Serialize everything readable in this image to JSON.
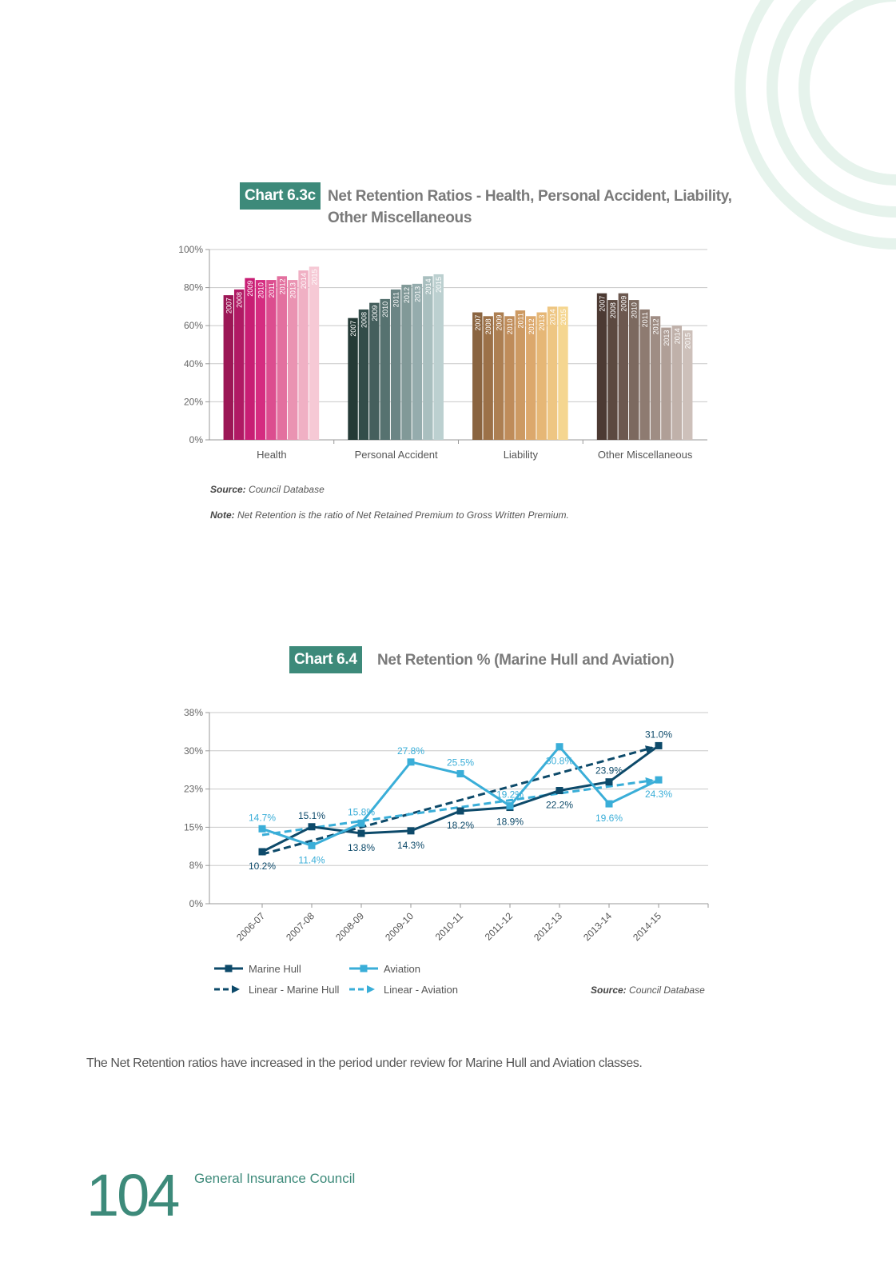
{
  "chart_data": [
    {
      "type": "bar",
      "label": "Chart 6.3c",
      "title": "Net Retention Ratios - Health, Personal Accident, Liability, Other Miscellaneous",
      "categories": [
        "Health",
        "Personal Accident",
        "Liability",
        "Other Miscellaneous"
      ],
      "series": [
        {
          "name": "2007",
          "colors": [
            "#9c1756",
            "#243a36",
            "#8a6440",
            "#4c3a33"
          ],
          "values": [
            76,
            64,
            67,
            77
          ]
        },
        {
          "name": "2008",
          "colors": [
            "#b01a64",
            "#334d4a",
            "#9c7148",
            "#5c4940"
          ],
          "values": [
            79,
            68.5,
            65,
            73.5
          ]
        },
        {
          "name": "2009",
          "colors": [
            "#c81e74",
            "#455f5d",
            "#ad7f52",
            "#6c584f"
          ],
          "values": [
            85,
            72,
            67,
            77
          ]
        },
        {
          "name": "2010",
          "colors": [
            "#d52c80",
            "#567270",
            "#bf8c5a",
            "#7c695f"
          ],
          "values": [
            84,
            74,
            65,
            73.5
          ]
        },
        {
          "name": "2011",
          "colors": [
            "#dc4d8f",
            "#6b8585",
            "#cd9a63",
            "#8e7b71"
          ],
          "values": [
            84,
            79,
            68,
            68.5
          ]
        },
        {
          "name": "2012",
          "colors": [
            "#e3709f",
            "#819998",
            "#dca86c",
            "#9f8d84"
          ],
          "values": [
            86,
            81.5,
            65,
            65
          ]
        },
        {
          "name": "2013",
          "colors": [
            "#ea93b2",
            "#95acad",
            "#e6b776",
            "#b09f97"
          ],
          "values": [
            84,
            82,
            67,
            59
          ]
        },
        {
          "name": "2014",
          "colors": [
            "#f0b0c4",
            "#a9bfbf",
            "#eec683",
            "#c0b1aa"
          ],
          "values": [
            89,
            86,
            70,
            60
          ]
        },
        {
          "name": "2015",
          "colors": [
            "#f6c9d5",
            "#bcd0d0",
            "#f5d690",
            "#cdc0ba"
          ],
          "values": [
            91,
            87,
            70,
            57.5
          ]
        }
      ],
      "ylim": [
        0,
        100
      ],
      "yticks": [
        {
          "value": 0,
          "label": "0%"
        },
        {
          "value": 20,
          "label": "20%"
        },
        {
          "value": 40,
          "label": "40%"
        },
        {
          "value": 60,
          "label": "60%"
        },
        {
          "value": 80,
          "label": "80%"
        },
        {
          "value": 100,
          "label": "100%"
        }
      ],
      "grid": true,
      "source_label": "Source:",
      "source": "Council Database",
      "note_label": "Note:",
      "note": "Net Retention is the ratio of Net Retained Premium to Gross Written Premium."
    },
    {
      "type": "line",
      "label": "Chart 6.4",
      "title": "Net Retention % (Marine Hull and Aviation)",
      "categories": [
        "2006-07",
        "2007-08",
        "2008-09",
        "2009-10",
        "2010-11",
        "2011-12",
        "2012-13",
        "2013-14",
        "2014-15"
      ],
      "series": [
        {
          "name": "Marine Hull",
          "color": "#0d4a6a",
          "values": [
            10.2,
            15.1,
            13.8,
            14.3,
            18.2,
            18.9,
            22.2,
            23.9,
            31.0
          ],
          "value_labels": [
            "10.2%",
            "15.1%",
            "13.8%",
            "14.3%",
            "18.2%",
            "18.9%",
            "22.2%",
            "23.9%",
            "31.0%"
          ]
        },
        {
          "name": "Aviation",
          "color": "#3aaed8",
          "values": [
            14.7,
            11.4,
            15.8,
            27.8,
            25.5,
            19.2,
            30.8,
            19.6,
            24.3
          ],
          "value_labels": [
            "14.7%",
            "11.4%",
            "15.8%",
            "27.8%",
            "25.5%",
            "19.2%",
            "30.8%",
            "19.6%",
            "24.3%"
          ]
        }
      ],
      "trendlines": [
        {
          "name": "Linear - Marine Hull",
          "color": "#0d4a6a",
          "start": 9.7,
          "end": 30.6
        },
        {
          "name": "Linear - Aviation",
          "color": "#3aaed8",
          "start": 13.5,
          "end": 24.2
        }
      ],
      "ylim": [
        0,
        37.5
      ],
      "yticks": [
        {
          "value": 0,
          "label": "0%"
        },
        {
          "value": 7.5,
          "label": "8%"
        },
        {
          "value": 15,
          "label": "15%"
        },
        {
          "value": 22.5,
          "label": "23%"
        },
        {
          "value": 30,
          "label": "30%"
        },
        {
          "value": 37.5,
          "label": "38%"
        }
      ],
      "grid": true,
      "legend": "bottom-left",
      "source_label": "Source:",
      "source": "Council Database"
    }
  ],
  "body_text": "The Net Retention ratios have increased in the period under review for Marine Hull and Aviation classes.",
  "footer": {
    "page_number": "104",
    "publisher": "General Insurance Council"
  }
}
